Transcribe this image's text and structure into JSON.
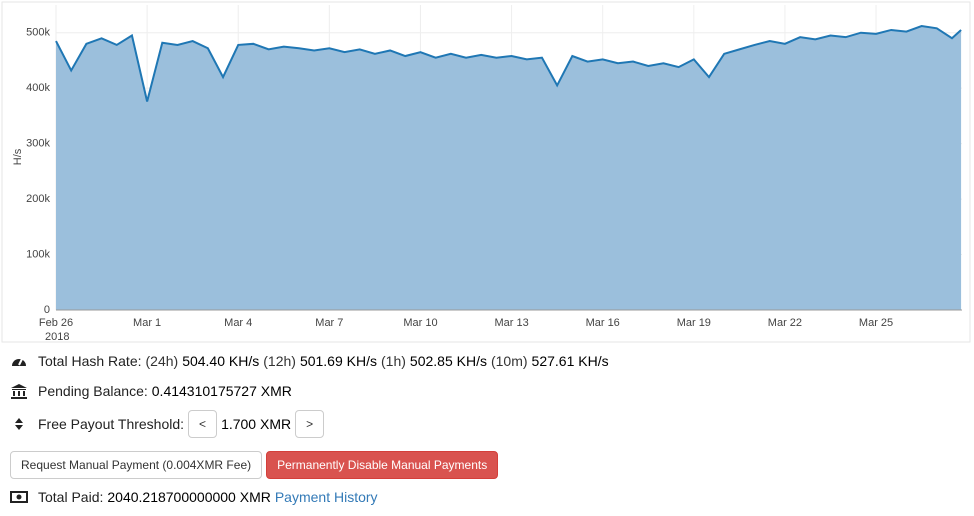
{
  "chart_data": {
    "type": "area",
    "y_label": "H/s",
    "color": "#1f77b4",
    "fill": "#9bbfdc",
    "grid": true,
    "xlim": [
      0,
      29.83
    ],
    "ylim": [
      0,
      550000
    ],
    "xticks": [
      {
        "value": 0,
        "label": "Feb 26"
      },
      {
        "value": 3,
        "label": "Mar 1"
      },
      {
        "value": 6,
        "label": "Mar 4"
      },
      {
        "value": 9,
        "label": "Mar 7"
      },
      {
        "value": 12,
        "label": "Mar 10"
      },
      {
        "value": 15,
        "label": "Mar 13"
      },
      {
        "value": 18,
        "label": "Mar 16"
      },
      {
        "value": 21,
        "label": "Mar 19"
      },
      {
        "value": 24,
        "label": "Mar 22"
      },
      {
        "value": 27,
        "label": "Mar 25"
      }
    ],
    "x_year_label": "2018",
    "yticks": [
      0,
      {
        "value": 100000,
        "label": "100k"
      },
      {
        "value": 200000,
        "label": "200k"
      },
      {
        "value": 300000,
        "label": "300k"
      },
      {
        "value": 400000,
        "label": "400k"
      },
      {
        "value": 500000,
        "label": "500k"
      }
    ],
    "x": [
      0,
      0.5,
      1,
      1.5,
      2,
      2.5,
      3,
      3.5,
      4,
      4.5,
      5,
      5.5,
      6,
      6.5,
      7,
      7.5,
      8,
      8.5,
      9,
      9.5,
      10,
      10.5,
      11,
      11.5,
      12,
      12.5,
      13,
      13.5,
      14,
      14.5,
      15,
      15.5,
      16,
      16.5,
      17,
      17.5,
      18,
      18.5,
      19,
      19.5,
      20,
      20.5,
      21,
      21.5,
      22,
      22.5,
      23,
      23.5,
      24,
      24.5,
      25,
      25.5,
      26,
      26.5,
      27,
      27.5,
      28,
      28.5,
      29,
      29.5,
      29.8
    ],
    "values": [
      485000,
      432000,
      480000,
      490000,
      478000,
      495000,
      376000,
      482000,
      478000,
      485000,
      472000,
      420000,
      478000,
      480000,
      470000,
      475000,
      472000,
      468000,
      472000,
      465000,
      470000,
      462000,
      468000,
      458000,
      465000,
      455000,
      462000,
      455000,
      460000,
      455000,
      458000,
      452000,
      455000,
      405000,
      458000,
      448000,
      452000,
      445000,
      448000,
      440000,
      445000,
      438000,
      452000,
      420000,
      462000,
      470000,
      478000,
      485000,
      480000,
      492000,
      488000,
      495000,
      492000,
      500000,
      498000,
      505000,
      502000,
      512000,
      508000,
      490000,
      505000
    ]
  },
  "stats": {
    "hash_rate": {
      "label": "Total Hash Rate:",
      "p24h": "(24h)",
      "v24h": "504.40 KH/s",
      "p12h": "(12h)",
      "v12h": "501.69 KH/s",
      "p1h": "(1h)",
      "v1h": "502.85 KH/s",
      "p10m": "(10m)",
      "v10m": "527.61 KH/s"
    },
    "pending": {
      "label": "Pending Balance:",
      "value": "0.414310175727 XMR"
    },
    "threshold": {
      "label": "Free Payout Threshold:",
      "decrease": "<",
      "value": "1.700 XMR",
      "increase": ">"
    },
    "buttons": {
      "request": "Request Manual Payment (0.004XMR Fee)",
      "disable": "Permanently Disable Manual Payments"
    },
    "paid": {
      "label": "Total Paid:",
      "value": "2040.218700000000 XMR",
      "link": "Payment History"
    }
  }
}
